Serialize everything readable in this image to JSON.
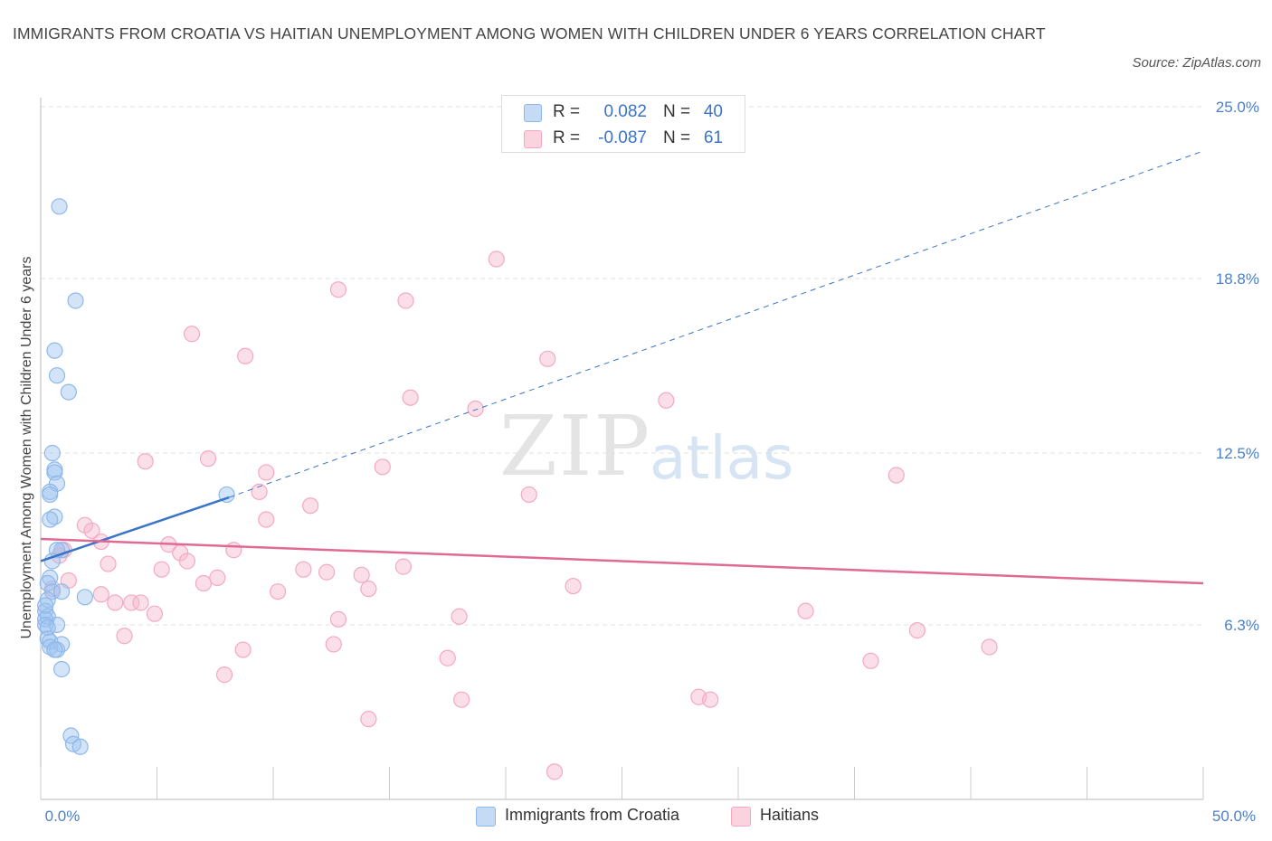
{
  "title": "IMMIGRANTS FROM CROATIA VS HAITIAN UNEMPLOYMENT AMONG WOMEN WITH CHILDREN UNDER 6 YEARS CORRELATION CHART",
  "source": "Source: ZipAtlas.com",
  "watermark": {
    "main": "ZIP",
    "sub": "atlas"
  },
  "legend": {
    "rows": [
      {
        "r_label": "R =",
        "r_value": "0.082",
        "n_label": "N =",
        "n_value": "40",
        "color": "#9ec3ef"
      },
      {
        "r_label": "R =",
        "r_value": "-0.087",
        "n_label": "N =",
        "n_value": "61",
        "color": "#f6b7cb"
      }
    ]
  },
  "bottom_legend": [
    {
      "label": "Immigrants from Croatia",
      "color": "#9ec3ef"
    },
    {
      "label": "Haitians",
      "color": "#f6b7cb"
    }
  ],
  "colors": {
    "blue_point": "#8fb8ea",
    "blue_line": "#3a74c8",
    "pink_point": "#f4a9c0",
    "pink_line": "#e06a94",
    "grid": "#e2e2e2",
    "tick_text": "#4a80c8"
  },
  "chart_data": {
    "type": "scatter",
    "title": "IMMIGRANTS FROM CROATIA VS HAITIAN UNEMPLOYMENT AMONG WOMEN WITH CHILDREN UNDER 6 YEARS CORRELATION CHART",
    "xlabel": "",
    "ylabel": "Unemployment Among Women with Children Under 6 years",
    "xlim": [
      0,
      50
    ],
    "ylim": [
      0,
      25
    ],
    "x_tick_labels": [
      "0.0%",
      "50.0%"
    ],
    "y_ticks": [
      6.3,
      12.5,
      18.8,
      25.0
    ],
    "y_tick_labels": [
      "6.3%",
      "12.5%",
      "18.8%",
      "25.0%"
    ],
    "grid": "horizontal dashed",
    "legend_position": "top-center",
    "series": [
      {
        "name": "Immigrants from Croatia",
        "r": 0.082,
        "n": 40,
        "trend": {
          "x": [
            0,
            8.1
          ],
          "y": [
            8.6,
            10.9
          ],
          "extended_to": [
            50,
            23.4
          ]
        },
        "points": [
          [
            0.8,
            21.4
          ],
          [
            1.5,
            18.0
          ],
          [
            0.6,
            16.2
          ],
          [
            0.7,
            15.3
          ],
          [
            1.2,
            14.7
          ],
          [
            0.5,
            12.5
          ],
          [
            0.6,
            11.9
          ],
          [
            0.6,
            11.8
          ],
          [
            0.7,
            11.4
          ],
          [
            0.4,
            11.1
          ],
          [
            0.4,
            11.0
          ],
          [
            8.0,
            11.0
          ],
          [
            0.6,
            10.2
          ],
          [
            0.4,
            10.1
          ],
          [
            0.9,
            9.0
          ],
          [
            0.7,
            9.0
          ],
          [
            0.5,
            8.6
          ],
          [
            0.4,
            8.0
          ],
          [
            0.3,
            7.8
          ],
          [
            0.5,
            7.5
          ],
          [
            0.9,
            7.5
          ],
          [
            1.9,
            7.3
          ],
          [
            0.3,
            7.2
          ],
          [
            0.2,
            6.8
          ],
          [
            0.3,
            6.6
          ],
          [
            0.2,
            6.5
          ],
          [
            0.2,
            6.3
          ],
          [
            0.7,
            6.3
          ],
          [
            0.3,
            6.2
          ],
          [
            0.3,
            5.8
          ],
          [
            0.4,
            5.7
          ],
          [
            0.9,
            5.6
          ],
          [
            0.4,
            5.5
          ],
          [
            0.7,
            5.4
          ],
          [
            0.6,
            5.4
          ],
          [
            0.9,
            4.7
          ],
          [
            1.3,
            2.3
          ],
          [
            1.4,
            2.0
          ],
          [
            1.7,
            1.9
          ],
          [
            0.2,
            7.0
          ]
        ]
      },
      {
        "name": "Haitians",
        "r": -0.087,
        "n": 61,
        "trend": {
          "x": [
            0,
            50
          ],
          "y": [
            9.4,
            7.8
          ]
        },
        "points": [
          [
            19.6,
            19.5
          ],
          [
            12.8,
            18.4
          ],
          [
            15.7,
            18.0
          ],
          [
            6.5,
            16.8
          ],
          [
            8.8,
            16.0
          ],
          [
            21.8,
            15.9
          ],
          [
            15.9,
            14.5
          ],
          [
            18.7,
            14.1
          ],
          [
            26.9,
            14.4
          ],
          [
            4.5,
            12.2
          ],
          [
            7.2,
            12.3
          ],
          [
            9.7,
            11.8
          ],
          [
            14.7,
            12.0
          ],
          [
            36.8,
            11.7
          ],
          [
            9.4,
            11.1
          ],
          [
            21.0,
            11.0
          ],
          [
            11.6,
            10.6
          ],
          [
            9.7,
            10.1
          ],
          [
            1.9,
            9.9
          ],
          [
            2.2,
            9.7
          ],
          [
            2.6,
            9.3
          ],
          [
            5.5,
            9.2
          ],
          [
            1.0,
            9.0
          ],
          [
            6.0,
            8.9
          ],
          [
            8.3,
            9.0
          ],
          [
            0.8,
            8.8
          ],
          [
            6.3,
            8.6
          ],
          [
            2.9,
            8.5
          ],
          [
            5.2,
            8.3
          ],
          [
            15.6,
            8.4
          ],
          [
            11.3,
            8.3
          ],
          [
            12.3,
            8.2
          ],
          [
            13.8,
            8.1
          ],
          [
            7.6,
            8.0
          ],
          [
            1.2,
            7.9
          ],
          [
            7.0,
            7.8
          ],
          [
            14.1,
            7.6
          ],
          [
            22.9,
            7.7
          ],
          [
            10.2,
            7.5
          ],
          [
            2.6,
            7.4
          ],
          [
            3.2,
            7.1
          ],
          [
            3.9,
            7.1
          ],
          [
            4.3,
            7.1
          ],
          [
            4.9,
            6.7
          ],
          [
            18.0,
            6.6
          ],
          [
            12.8,
            6.5
          ],
          [
            32.9,
            6.8
          ],
          [
            37.7,
            6.1
          ],
          [
            3.6,
            5.9
          ],
          [
            8.7,
            5.4
          ],
          [
            12.6,
            5.6
          ],
          [
            40.8,
            5.5
          ],
          [
            17.5,
            5.1
          ],
          [
            35.7,
            5.0
          ],
          [
            7.9,
            4.5
          ],
          [
            18.1,
            3.6
          ],
          [
            28.3,
            3.7
          ],
          [
            28.8,
            3.6
          ],
          [
            14.1,
            2.9
          ],
          [
            22.1,
            1.0
          ],
          [
            0.5,
            7.6
          ]
        ]
      }
    ]
  }
}
